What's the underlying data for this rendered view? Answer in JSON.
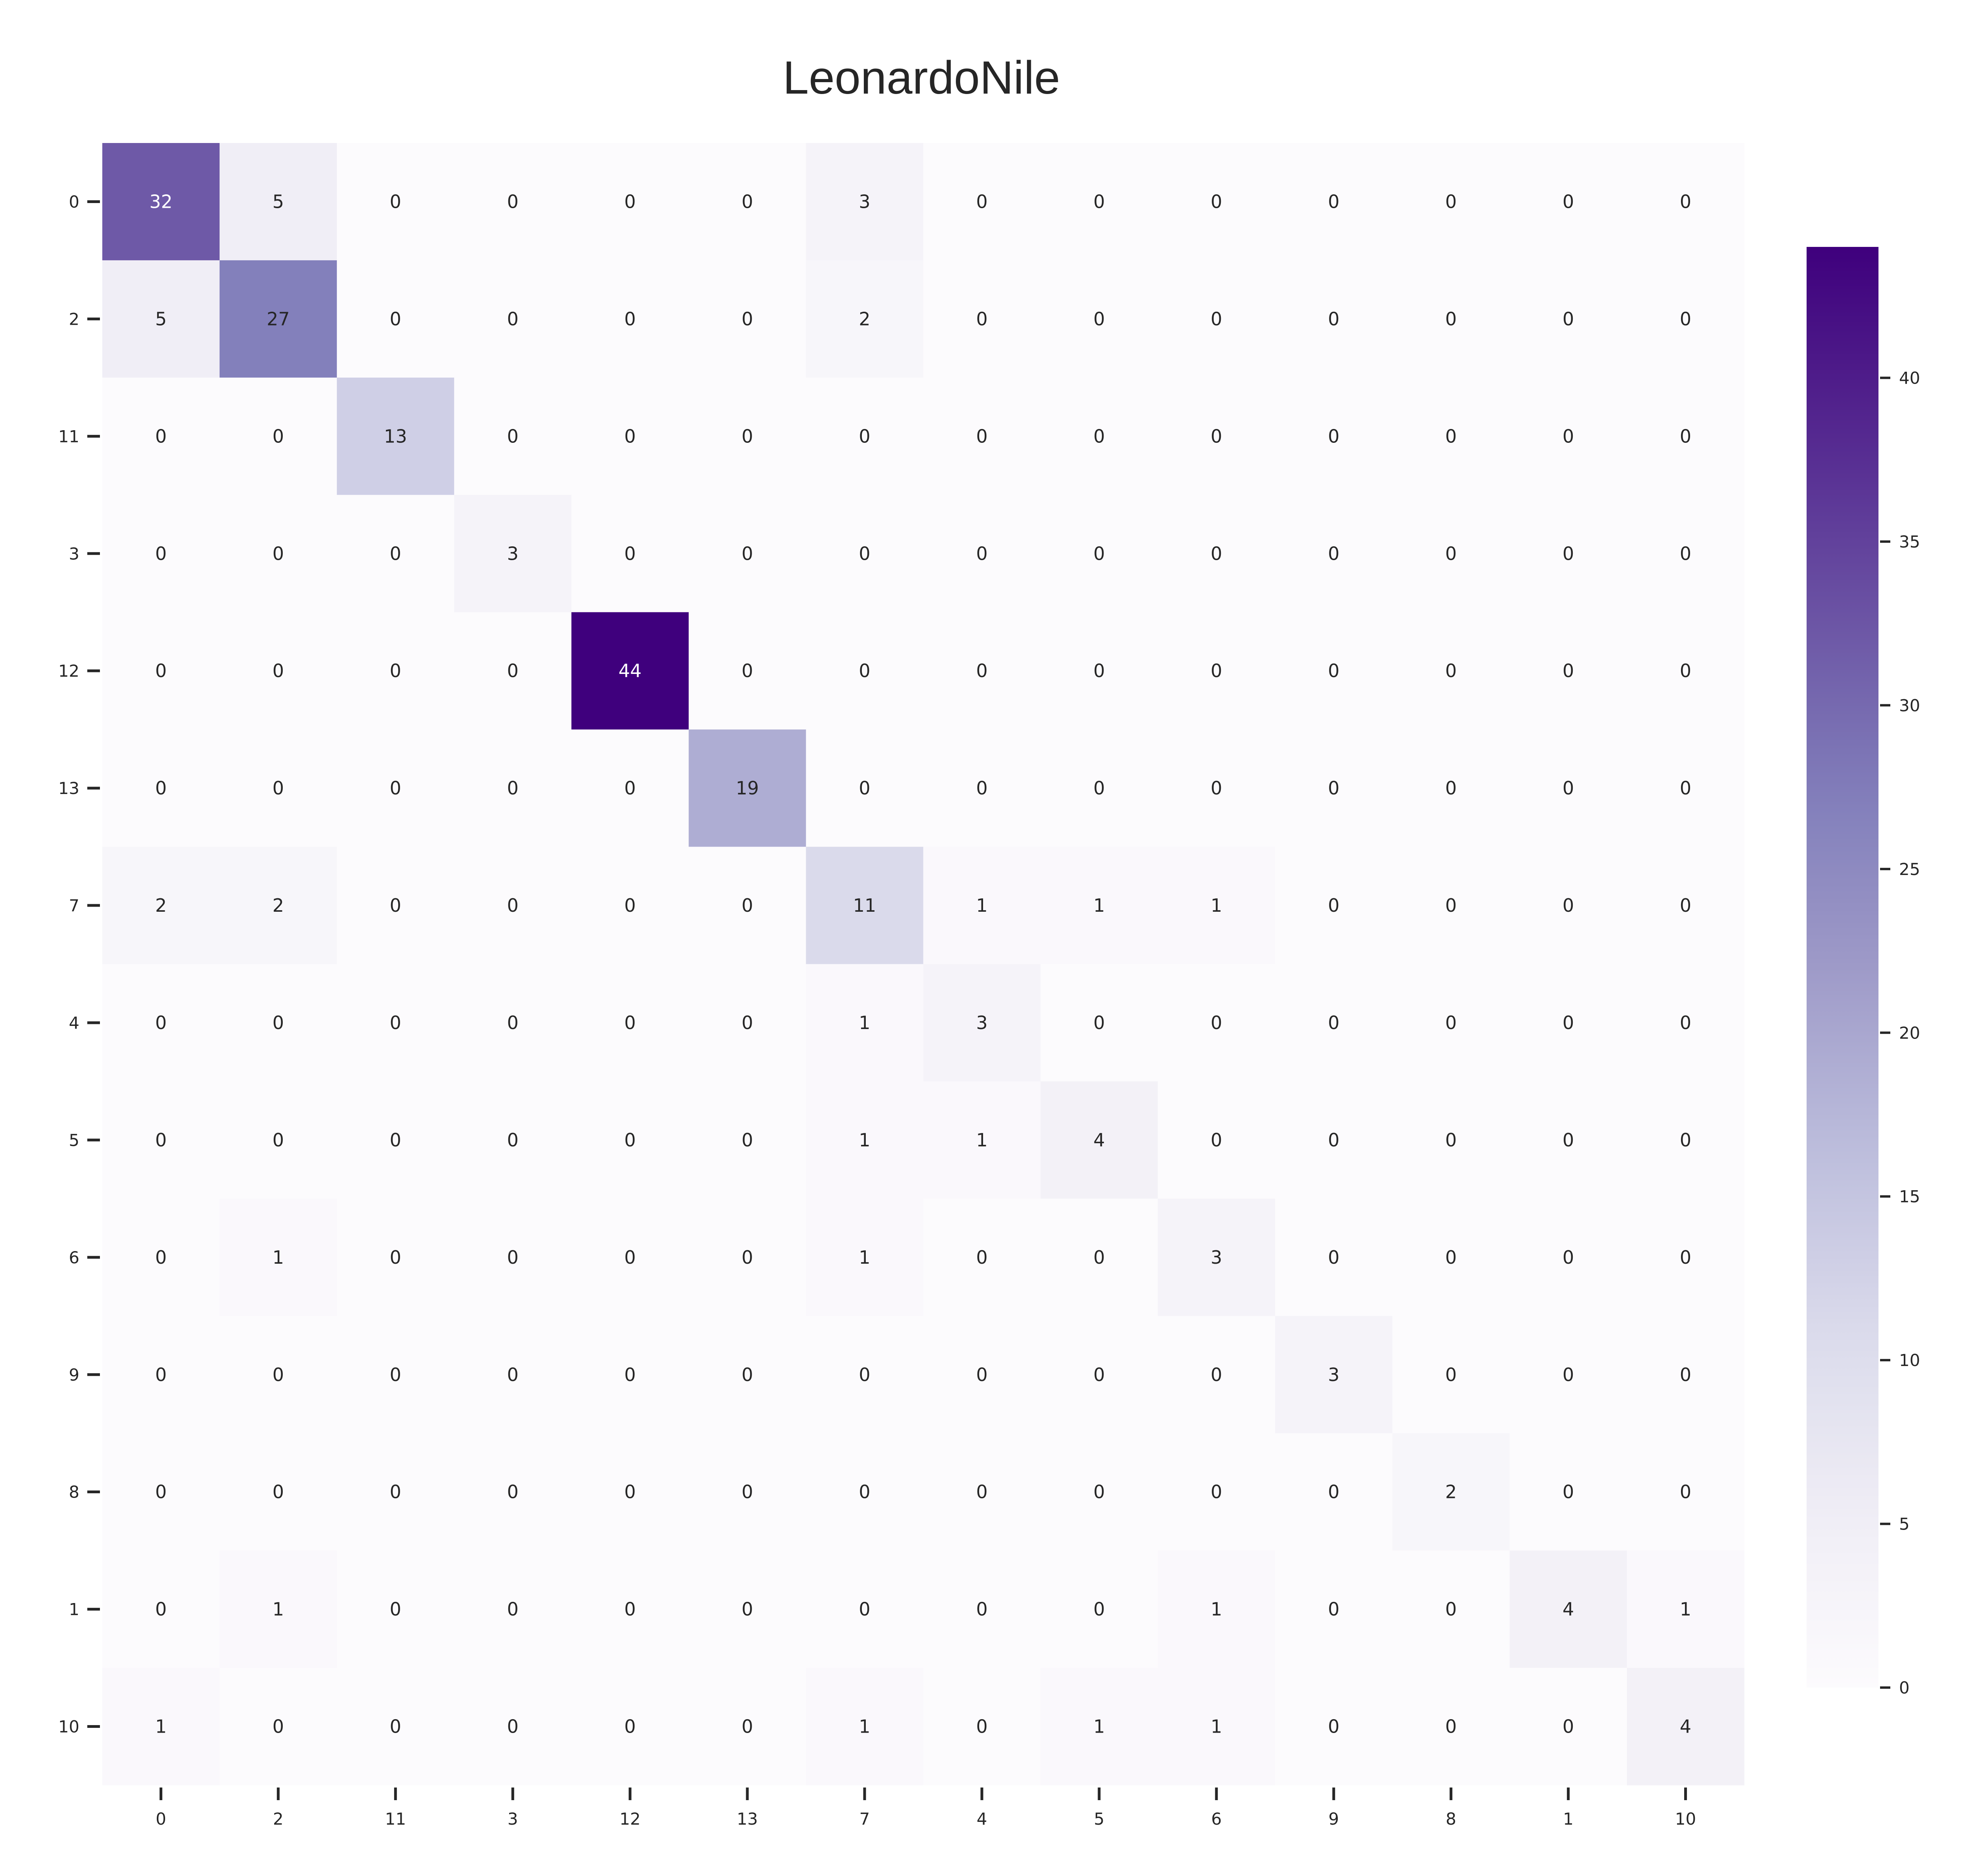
{
  "chart_data": {
    "type": "heatmap",
    "title": "LeonardoNile",
    "xlabel": "",
    "ylabel": "",
    "row_labels": [
      "0",
      "2",
      "11",
      "3",
      "12",
      "13",
      "7",
      "4",
      "5",
      "6",
      "9",
      "8",
      "1",
      "10"
    ],
    "col_labels": [
      "0",
      "2",
      "11",
      "3",
      "12",
      "13",
      "7",
      "4",
      "5",
      "6",
      "9",
      "8",
      "1",
      "10"
    ],
    "matrix": [
      [
        32,
        5,
        0,
        0,
        0,
        0,
        3,
        0,
        0,
        0,
        0,
        0,
        0,
        0
      ],
      [
        5,
        27,
        0,
        0,
        0,
        0,
        2,
        0,
        0,
        0,
        0,
        0,
        0,
        0
      ],
      [
        0,
        0,
        13,
        0,
        0,
        0,
        0,
        0,
        0,
        0,
        0,
        0,
        0,
        0
      ],
      [
        0,
        0,
        0,
        3,
        0,
        0,
        0,
        0,
        0,
        0,
        0,
        0,
        0,
        0
      ],
      [
        0,
        0,
        0,
        0,
        44,
        0,
        0,
        0,
        0,
        0,
        0,
        0,
        0,
        0
      ],
      [
        0,
        0,
        0,
        0,
        0,
        19,
        0,
        0,
        0,
        0,
        0,
        0,
        0,
        0
      ],
      [
        2,
        2,
        0,
        0,
        0,
        0,
        11,
        1,
        1,
        1,
        0,
        0,
        0,
        0
      ],
      [
        0,
        0,
        0,
        0,
        0,
        0,
        1,
        3,
        0,
        0,
        0,
        0,
        0,
        0
      ],
      [
        0,
        0,
        0,
        0,
        0,
        0,
        1,
        1,
        4,
        0,
        0,
        0,
        0,
        0
      ],
      [
        0,
        1,
        0,
        0,
        0,
        0,
        1,
        0,
        0,
        3,
        0,
        0,
        0,
        0
      ],
      [
        0,
        0,
        0,
        0,
        0,
        0,
        0,
        0,
        0,
        0,
        3,
        0,
        0,
        0
      ],
      [
        0,
        0,
        0,
        0,
        0,
        0,
        0,
        0,
        0,
        0,
        0,
        2,
        0,
        0
      ],
      [
        0,
        1,
        0,
        0,
        0,
        0,
        0,
        0,
        0,
        1,
        0,
        0,
        4,
        1
      ],
      [
        1,
        0,
        0,
        0,
        0,
        0,
        1,
        0,
        1,
        1,
        0,
        0,
        0,
        4
      ]
    ],
    "colormap": "Purples",
    "colorbar": {
      "vmin": 0,
      "vmax": 44,
      "ticks": [
        0,
        5,
        10,
        15,
        20,
        25,
        30,
        35,
        40
      ],
      "placement": "right"
    },
    "annotations": true,
    "grid": false
  }
}
